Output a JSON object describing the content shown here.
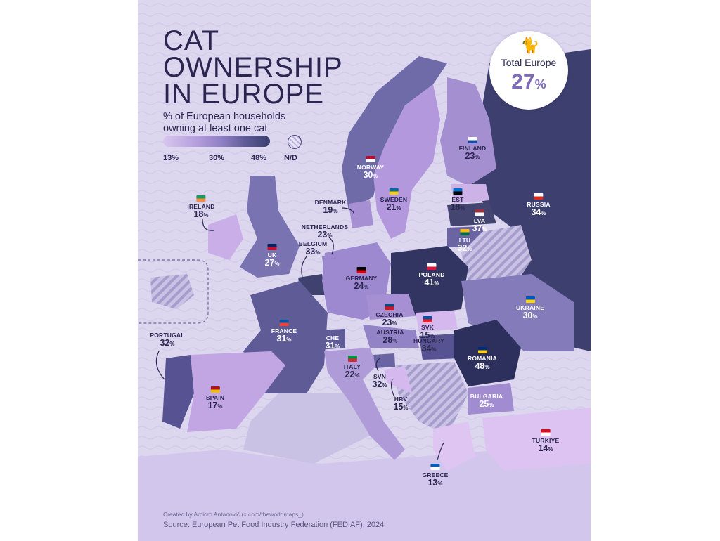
{
  "title": {
    "line1": "CAT",
    "line2": "OWNERSHIP",
    "line3": "IN EUROPE"
  },
  "subtitle": {
    "line1": "% of European households",
    "line2": "owning at least one cat"
  },
  "legend": {
    "min": "13%",
    "mid": "30%",
    "max": "48%",
    "nodata": "N/D",
    "colors": [
      "#d9c6ee",
      "#b7a0de",
      "#8f7fc4",
      "#5d5a96",
      "#3b3f70"
    ]
  },
  "total": {
    "label": "Total Europe",
    "value": "27",
    "unit": "%",
    "icon": "cat-icon"
  },
  "countries": [
    {
      "name": "RUSSIA",
      "value": 34
    },
    {
      "name": "FINLAND",
      "value": 23
    },
    {
      "name": "NORWAY",
      "value": 30
    },
    {
      "name": "SWEDEN",
      "value": 21
    },
    {
      "name": "EST",
      "value": 18
    },
    {
      "name": "LVA",
      "value": 37
    },
    {
      "name": "LTU",
      "value": 32
    },
    {
      "name": "IRELAND",
      "value": 18
    },
    {
      "name": "DENMARK",
      "value": 19
    },
    {
      "name": "NETHERLANDS",
      "value": 23
    },
    {
      "name": "BELGIUM",
      "value": 33
    },
    {
      "name": "UK",
      "value": 27
    },
    {
      "name": "GERMANY",
      "value": 24
    },
    {
      "name": "POLAND",
      "value": 41
    },
    {
      "name": "CZECHIA",
      "value": 23
    },
    {
      "name": "SVK",
      "value": 15
    },
    {
      "name": "UKRAINE",
      "value": 30
    },
    {
      "name": "FRANCE",
      "value": 31
    },
    {
      "name": "CHE",
      "value": 31
    },
    {
      "name": "AUSTRIA",
      "value": 28
    },
    {
      "name": "HUNGARY",
      "value": 34
    },
    {
      "name": "ROMANIA",
      "value": 48
    },
    {
      "name": "PORTUGAL",
      "value": 32
    },
    {
      "name": "ITALY",
      "value": 22
    },
    {
      "name": "SVN",
      "value": 32
    },
    {
      "name": "HRV",
      "value": 15
    },
    {
      "name": "BULGARIA",
      "value": 25
    },
    {
      "name": "SPAIN",
      "value": 17
    },
    {
      "name": "TURKIYE",
      "value": 14
    },
    {
      "name": "GREECE",
      "value": 13
    }
  ],
  "credit": "Created by Arciom Antanovič (x.com/theworldmaps_)",
  "source": "Source: European Pet Food Industry Federation (FEDIAF), 2024"
}
